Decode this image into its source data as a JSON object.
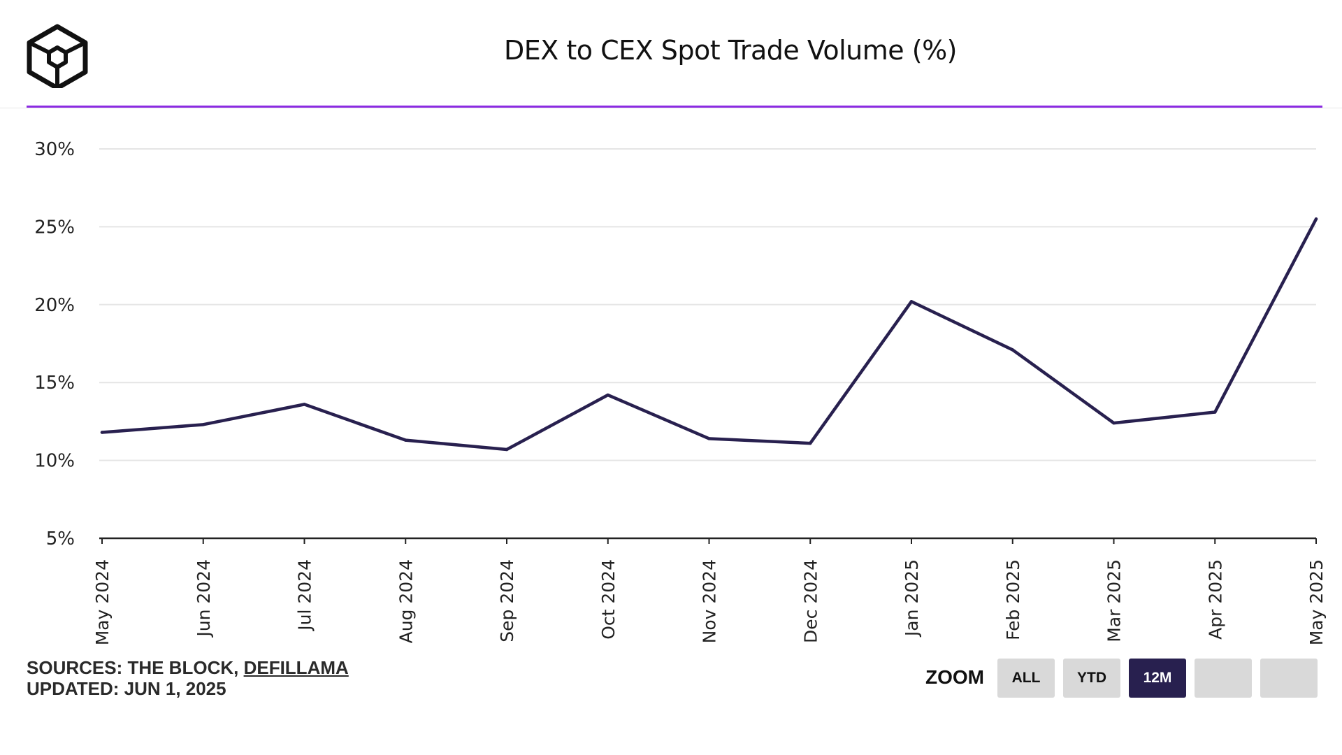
{
  "chart_data": {
    "type": "line",
    "title": "DEX to CEX Spot Trade Volume (%)",
    "categories": [
      "May 2024",
      "Jun 2024",
      "Jul 2024",
      "Aug 2024",
      "Sep 2024",
      "Oct 2024",
      "Nov 2024",
      "Dec 2024",
      "Jan 2025",
      "Feb 2025",
      "Mar 2025",
      "Apr 2025",
      "May 2025"
    ],
    "series": [
      {
        "values": [
          11.8,
          12.3,
          13.6,
          11.3,
          10.7,
          14.2,
          11.4,
          11.1,
          20.2,
          17.1,
          12.4,
          13.1,
          25.5
        ]
      }
    ],
    "y_ticks": [
      "5%",
      "10%",
      "15%",
      "20%",
      "25%",
      "30%"
    ],
    "y_tick_values": [
      5,
      10,
      15,
      20,
      25,
      30
    ],
    "ylim": [
      5,
      30
    ],
    "grid": true,
    "line_color": "#28204f"
  },
  "footer": {
    "sources_prefix": "SOURCES: THE BLOCK, ",
    "sources_link": "DEFILLAMA",
    "updated": "UPDATED: JUN 1, 2025"
  },
  "zoom": {
    "label": "ZOOM",
    "buttons": [
      {
        "label": "ALL",
        "active": false
      },
      {
        "label": "YTD",
        "active": false
      },
      {
        "label": "12M",
        "active": true
      },
      {
        "label": "",
        "active": false
      },
      {
        "label": "",
        "active": false
      }
    ]
  },
  "colors": {
    "accent": "#8b2be2",
    "series": "#28204f",
    "button": "#d9d9d9"
  }
}
